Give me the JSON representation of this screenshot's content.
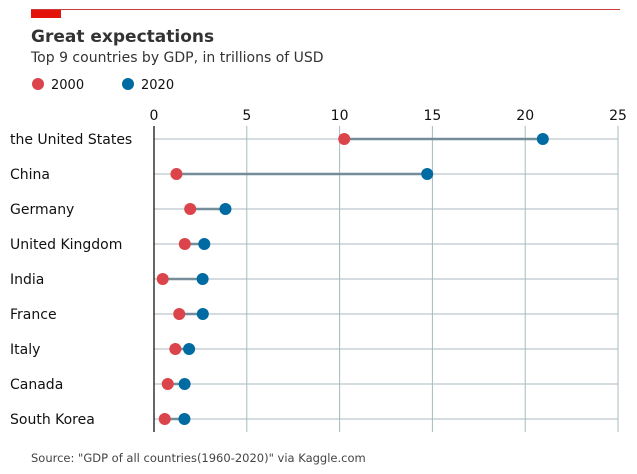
{
  "header": {
    "title": "Great expectations",
    "subtitle": "Top 9 countries by GDP, in trillions of USD",
    "accent_color": "#E3120B",
    "rule_color": "#C73E3E"
  },
  "source": "Source: \"GDP of all countries(1960-2020)\" via Kaggle.com",
  "chart_data": {
    "type": "dumbbell",
    "title": "Great expectations",
    "subtitle": "Top 9 countries by GDP, in trillions of USD",
    "categories": [
      "the United States",
      "China",
      "Germany",
      "United Kingdom",
      "India",
      "France",
      "Italy",
      "Canada",
      "South Korea"
    ],
    "series": [
      {
        "name": "2000",
        "color": "#DB444B",
        "values": [
          10.25,
          1.21,
          1.95,
          1.66,
          0.47,
          1.36,
          1.15,
          0.74,
          0.58
        ]
      },
      {
        "name": "2020",
        "color": "#006BA2",
        "values": [
          20.95,
          14.72,
          3.85,
          2.71,
          2.62,
          2.63,
          1.89,
          1.65,
          1.64
        ]
      }
    ],
    "connector_color": "#758D99",
    "xlim": [
      0,
      25
    ],
    "xticks": [
      0,
      5,
      10,
      15,
      20,
      25
    ],
    "grid": true,
    "grid_color": "#A8BABF",
    "x_axis_position": "top",
    "legend_position": "top-left"
  }
}
